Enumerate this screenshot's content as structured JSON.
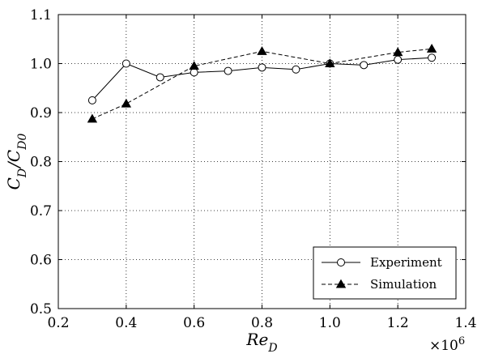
{
  "chart_data": {
    "type": "line",
    "title": "",
    "xlabel": "Re_D",
    "ylabel": "C_D/C_D0",
    "x_exponent_label": "×10",
    "x_exponent_power": "6",
    "xlim": [
      0.2,
      1.4
    ],
    "ylim": [
      0.5,
      1.1
    ],
    "xticks": [
      "0.2",
      "0.4",
      "0.6",
      "0.8",
      "1.0",
      "1.2",
      "1.4"
    ],
    "yticks": [
      "0.5",
      "0.6",
      "0.7",
      "0.8",
      "0.9",
      "1.0",
      "1.1"
    ],
    "grid": true,
    "legend_position": "bottom-right",
    "series": [
      {
        "name": "Experiment",
        "marker": "open-circle",
        "linestyle": "solid",
        "color": "#000000",
        "x": [
          0.3,
          0.4,
          0.5,
          0.6,
          0.7,
          0.8,
          0.9,
          1.0,
          1.1,
          1.2,
          1.3
        ],
        "y": [
          0.925,
          1.0,
          0.972,
          0.982,
          0.985,
          0.992,
          0.988,
          1.0,
          0.997,
          1.008,
          1.012
        ]
      },
      {
        "name": "Simulation",
        "marker": "filled-triangle",
        "linestyle": "dashed",
        "color": "#000000",
        "x": [
          0.3,
          0.4,
          0.6,
          0.8,
          1.0,
          1.2,
          1.3
        ],
        "y": [
          0.887,
          0.918,
          0.995,
          1.025,
          1.0,
          1.023,
          1.03
        ]
      }
    ]
  }
}
